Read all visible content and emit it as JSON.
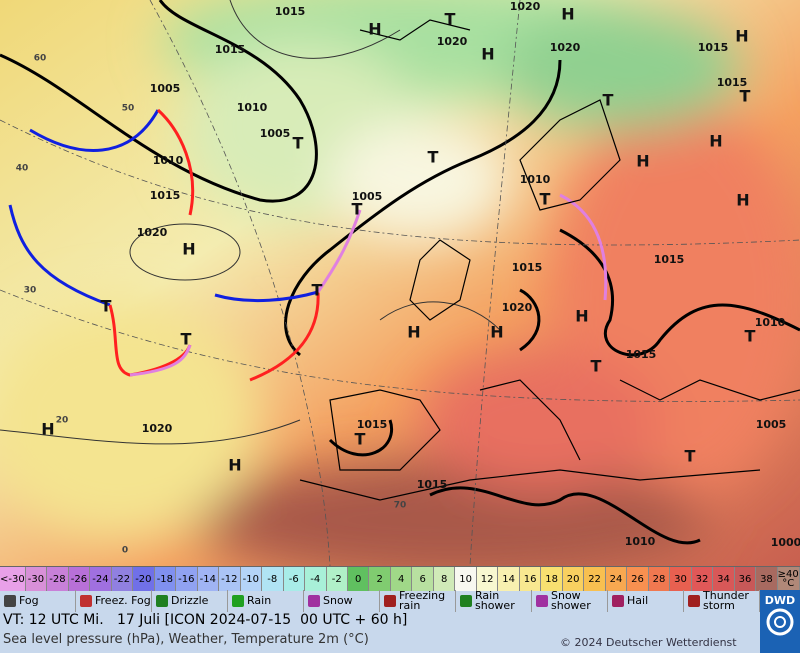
{
  "map": {
    "labels": [
      "1015",
      "1020",
      "1015",
      "1020",
      "1020",
      "1015",
      "1005",
      "1015",
      "1010",
      "1005",
      "1010",
      "1015",
      "1005",
      "1010",
      "1020",
      "1015",
      "1015",
      "1020",
      "1010",
      "1015",
      "1015",
      "1020",
      "1005",
      "1015",
      "1010",
      "1000",
      "H",
      "T",
      "H",
      "H",
      "H",
      "T",
      "T",
      "H",
      "T",
      "T",
      "H",
      "H",
      "T",
      "T",
      "H",
      "T",
      "T",
      "H",
      "H",
      "H",
      "T",
      "T",
      "T",
      "H",
      "T",
      "H",
      "T",
      "60",
      "50",
      "40",
      "30",
      "20",
      "0",
      "70"
    ]
  },
  "scale": {
    "cells": [
      {
        "label": "<-30",
        "color": "#e8a0e8"
      },
      {
        "label": "-30",
        "color": "#d890d8"
      },
      {
        "label": "-28",
        "color": "#c880d8"
      },
      {
        "label": "-26",
        "color": "#b870d8"
      },
      {
        "label": "-24",
        "color": "#a070e0"
      },
      {
        "label": "-22",
        "color": "#9080e0"
      },
      {
        "label": "-20",
        "color": "#7070e8"
      },
      {
        "label": "-18",
        "color": "#8090f0"
      },
      {
        "label": "-16",
        "color": "#90a2f2"
      },
      {
        "label": "-14",
        "color": "#a0b4f4"
      },
      {
        "label": "-12",
        "color": "#aac4f6"
      },
      {
        "label": "-10",
        "color": "#b4d4f8"
      },
      {
        "label": "-8",
        "color": "#b0e4f4"
      },
      {
        "label": "-6",
        "color": "#a8ece8"
      },
      {
        "label": "-4",
        "color": "#a8f0d8"
      },
      {
        "label": "-2",
        "color": "#b0f0c8"
      },
      {
        "label": "0",
        "color": "#60c060"
      },
      {
        "label": "2",
        "color": "#80cc70"
      },
      {
        "label": "4",
        "color": "#a0d888"
      },
      {
        "label": "6",
        "color": "#b8e0a0"
      },
      {
        "label": "8",
        "color": "#d0eab8"
      },
      {
        "label": "10",
        "color": "#f8f8f0"
      },
      {
        "label": "12",
        "color": "#f8f8d0"
      },
      {
        "label": "14",
        "color": "#f8f0b0"
      },
      {
        "label": "16",
        "color": "#f8e890"
      },
      {
        "label": "18",
        "color": "#f8e070"
      },
      {
        "label": "20",
        "color": "#f8d060"
      },
      {
        "label": "22",
        "color": "#f8c050"
      },
      {
        "label": "24",
        "color": "#f8a850"
      },
      {
        "label": "26",
        "color": "#f89050"
      },
      {
        "label": "28",
        "color": "#f07850"
      },
      {
        "label": "30",
        "color": "#e86050"
      },
      {
        "label": "32",
        "color": "#e05858"
      },
      {
        "label": "34",
        "color": "#d85858"
      },
      {
        "label": "36",
        "color": "#c85858"
      },
      {
        "label": "38",
        "color": "#a86a60"
      },
      {
        "label": "≥40 °C",
        "color": "#b08878"
      }
    ]
  },
  "legend": {
    "items": [
      "Fog",
      "Freez. Fog",
      "Drizzle",
      "Rain",
      "Snow",
      "Freezing rain",
      "Rain shower",
      "Snow shower",
      "Hail",
      "Thunder storm"
    ],
    "logo": "DWD"
  },
  "info": {
    "valid_time": "VT: 12 UTC Mi.   17 Juli [ICON 2024-07-15  00 UTC + 60 h]",
    "description": "Sea level pressure (hPa), Weather, Temperature 2m (°C)",
    "copyright": "© 2024 Deutscher Wetterdienst"
  }
}
